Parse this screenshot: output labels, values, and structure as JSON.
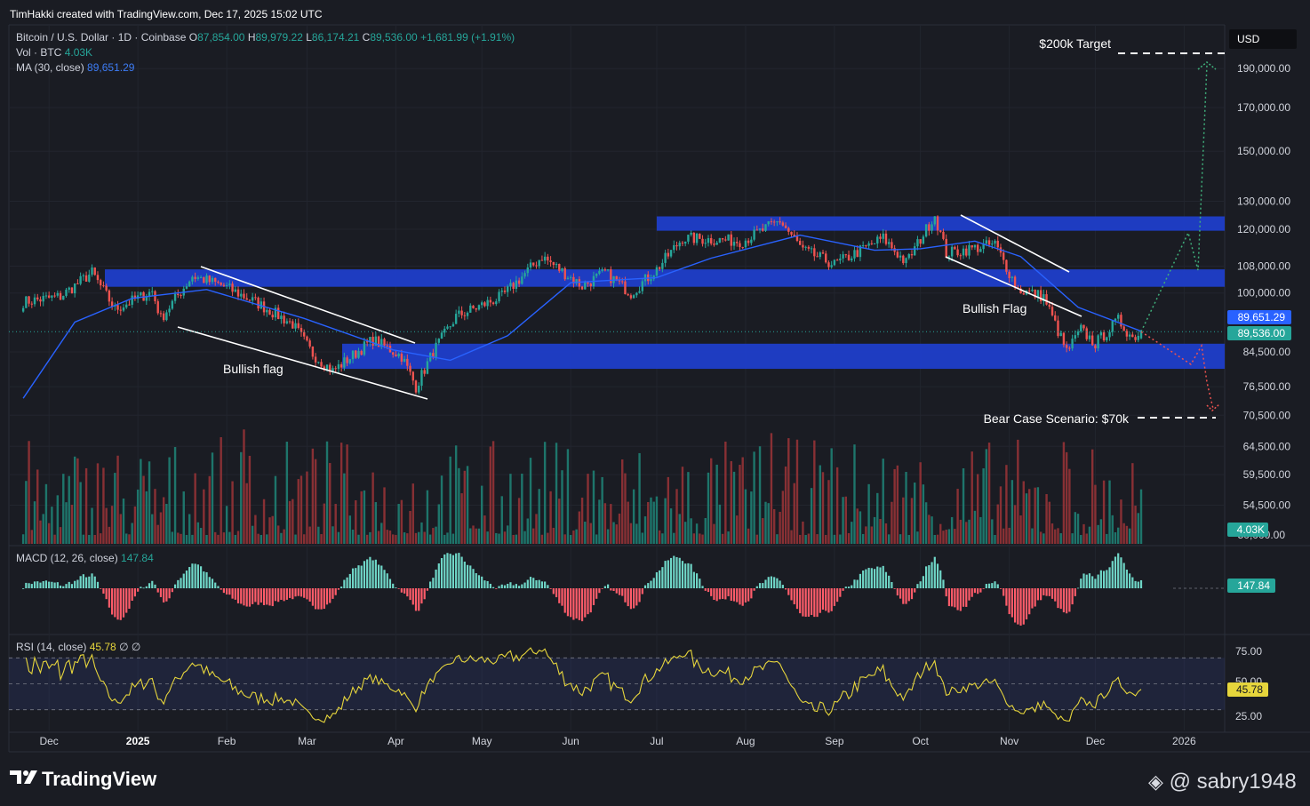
{
  "header": {
    "author_line": "TimHakki created with TradingView.com, Dec 17, 2025 15:02 UTC"
  },
  "legend": {
    "symbol": "Bitcoin / U.S. Dollar · 1D · Coinbase",
    "o_label": "O",
    "o": "87,854.00",
    "h_label": "H",
    "h": "89,979.22",
    "l_label": "L",
    "l": "86,174.21",
    "c_label": "C",
    "c": "89,536.00",
    "change": "+1,681.99 (+1.91%)",
    "vol_label": "Vol · BTC",
    "vol": "4.03K",
    "ma_label": "MA (30, close)",
    "ma": "89,651.29",
    "macd_label": "MACD (12, 26, close)",
    "macd": "147.84",
    "rsi_label": "RSI (14, close)",
    "rsi": "45.78",
    "rsi_extra": "∅ ∅"
  },
  "currency_button": "USD",
  "brand": "TradingView",
  "watermark": "@ sabry1948",
  "colors": {
    "background": "#1a1c23",
    "up": "#26a69a",
    "down": "#ef5350",
    "ma": "#2962ff",
    "zone": "#1e3fcf",
    "rsi": "#e6d53c",
    "macd_up": "#6fd6c7",
    "macd_down": "#ff5c6a"
  },
  "chart_data": {
    "type": "candlestick",
    "scale": "log",
    "price_axis_ticks": [
      190000,
      170000,
      150000,
      130000,
      120000,
      108000,
      100000,
      84500,
      76500,
      70500,
      64500,
      59500,
      54500
    ],
    "price_axis_tick_labels": [
      "190,000.00",
      "170,000.00",
      "150,000.00",
      "130,000.00",
      "120,000.00",
      "108,000.00",
      "100,000.00",
      "84,500.00",
      "76,500.00",
      "70,500.00",
      "64,500.00",
      "59,500.00",
      "54,500.00"
    ],
    "price_axis_partial_label": "50,000.00",
    "time_axis_labels": [
      "Dec",
      "2025",
      "Feb",
      "Mar",
      "Apr",
      "May",
      "Jun",
      "Jul",
      "Aug",
      "Sep",
      "Oct",
      "Nov",
      "Dec",
      "2026"
    ],
    "close_path": [
      [
        "2024-11-22",
        97500
      ],
      [
        "2024-12-05",
        99000
      ],
      [
        "2024-12-16",
        106000
      ],
      [
        "2024-12-24",
        95500
      ],
      [
        "2025-01-06",
        100500
      ],
      [
        "2025-01-09",
        93000
      ],
      [
        "2025-01-20",
        105000
      ],
      [
        "2025-01-31",
        102000
      ],
      [
        "2025-02-12",
        97000
      ],
      [
        "2025-02-24",
        91500
      ],
      [
        "2025-03-03",
        84000
      ],
      [
        "2025-03-10",
        80000
      ],
      [
        "2025-03-24",
        87500
      ],
      [
        "2025-04-03",
        83500
      ],
      [
        "2025-04-08",
        76500
      ],
      [
        "2025-04-14",
        84500
      ],
      [
        "2025-04-22",
        93500
      ],
      [
        "2025-05-08",
        99000
      ],
      [
        "2025-05-22",
        111000
      ],
      [
        "2025-06-05",
        102000
      ],
      [
        "2025-06-13",
        106000
      ],
      [
        "2025-06-22",
        100000
      ],
      [
        "2025-07-01",
        107000
      ],
      [
        "2025-07-10",
        117000
      ],
      [
        "2025-07-31",
        116000
      ],
      [
        "2025-08-13",
        123000
      ],
      [
        "2025-08-21",
        113000
      ],
      [
        "2025-09-01",
        108500
      ],
      [
        "2025-09-18",
        117000
      ],
      [
        "2025-09-26",
        109000
      ],
      [
        "2025-10-06",
        125000
      ],
      [
        "2025-10-10",
        112000
      ],
      [
        "2025-10-27",
        115000
      ],
      [
        "2025-11-04",
        101000
      ],
      [
        "2025-11-13",
        99000
      ],
      [
        "2025-11-21",
        84500
      ],
      [
        "2025-11-26",
        90000
      ],
      [
        "2025-12-01",
        86500
      ],
      [
        "2025-12-09",
        92500
      ],
      [
        "2025-12-14",
        88000
      ],
      [
        "2025-12-17",
        89536
      ]
    ],
    "ma30_path": [
      [
        "2024-11-22",
        74000
      ],
      [
        "2024-12-10",
        92000
      ],
      [
        "2024-12-30",
        98500
      ],
      [
        "2025-01-25",
        101000
      ],
      [
        "2025-02-28",
        93000
      ],
      [
        "2025-03-31",
        85000
      ],
      [
        "2025-04-20",
        82500
      ],
      [
        "2025-05-10",
        88500
      ],
      [
        "2025-06-01",
        103000
      ],
      [
        "2025-07-01",
        104500
      ],
      [
        "2025-07-20",
        110500
      ],
      [
        "2025-08-20",
        118000
      ],
      [
        "2025-09-15",
        113000
      ],
      [
        "2025-10-01",
        113500
      ],
      [
        "2025-10-20",
        116000
      ],
      [
        "2025-11-05",
        111000
      ],
      [
        "2025-11-25",
        96000
      ],
      [
        "2025-12-17",
        89651.29
      ]
    ],
    "zones": [
      {
        "from": 119500,
        "to": 124500
      },
      {
        "from": 101800,
        "to": 107000
      },
      {
        "from": 80500,
        "to": 86500
      }
    ],
    "channels": [
      {
        "label": "Bullish flag"
      },
      {
        "label": "Bullish Flag"
      }
    ],
    "annotations": [
      {
        "text": "$200k Target",
        "price": 195000
      },
      {
        "text": "Bear Case Scenario: $70k",
        "price": 70500
      }
    ],
    "last_price_labels": [
      "89,651.29",
      "89,536.00"
    ],
    "volume_label": "4.03K",
    "macd_value_label": "147.84",
    "rsi": {
      "levels": [
        70,
        50,
        30
      ],
      "tick_labels": [
        "75.00",
        "50.00",
        "25.00"
      ],
      "last": 45.78
    }
  }
}
